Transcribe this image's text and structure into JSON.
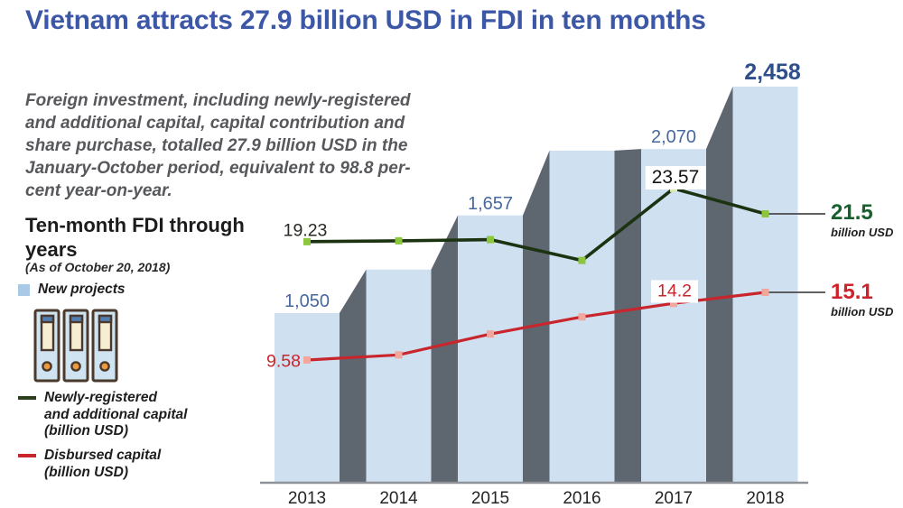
{
  "title": "Vietnam attracts 27.9 billion USD in FDI in ten months",
  "intro_lines": [
    "Foreign investment, including newly-registered",
    "and additional capital, capital contribution and",
    "share purchase, totalled 27.9 billion USD in the",
    "January-October period, equivalent to 98.8 per-",
    "cent year-on-year."
  ],
  "section": {
    "heading_line1": "Ten-month FDI through",
    "heading_line2": "years",
    "subheading": "(As of October 20, 2018)"
  },
  "legend": {
    "new_projects": "New projects",
    "newly_registered_lines": [
      "Newly-registered",
      "and additional capital",
      "(billion USD)"
    ],
    "disbursed_lines": [
      "Disbursed capital",
      "(billion USD)"
    ]
  },
  "colors": {
    "accent_blue": "#3c57a6",
    "bar_fill": "#cfe0f1",
    "bar_side": "#5e6670",
    "axis": "#8f9298",
    "green_line": "#1c3312",
    "green_marker": "#8cc63e",
    "green_marker_pale": "#dce8b4",
    "red_line": "#c9252c",
    "red_marker": "#f3a69c",
    "connector": "#4a4a4a",
    "end_green": "#17602e",
    "end_red": "#d02028"
  },
  "chart_data": {
    "type": "bar+line combo",
    "categories": [
      "2013",
      "2014",
      "2015",
      "2016",
      "2017",
      "2018"
    ],
    "legend_position": "left",
    "grid": false,
    "series": [
      {
        "name": "New projects",
        "type": "bar",
        "values": [
          1050,
          1320,
          1657,
          2060,
          2070,
          2458
        ],
        "value_labels": [
          "1,050",
          null,
          "1,657",
          null,
          "2,070",
          "2,458"
        ],
        "color": "#cfe0f1"
      },
      {
        "name": "Newly-registered and additional capital (billion USD)",
        "type": "line",
        "values": [
          19.23,
          19.3,
          19.4,
          17.7,
          23.57,
          21.5
        ],
        "point_labels": [
          "19.23",
          null,
          null,
          null,
          "23.57",
          null
        ],
        "end_label": {
          "value": "21.5",
          "unit": "billion USD"
        },
        "color": "#1c3312"
      },
      {
        "name": "Disbursed capital (billion USD)",
        "type": "line",
        "values": [
          9.58,
          10.0,
          11.7,
          13.1,
          14.2,
          15.1
        ],
        "point_labels": [
          "9.58",
          null,
          null,
          null,
          "14.2",
          null
        ],
        "end_label": {
          "value": "15.1",
          "unit": "billion USD"
        },
        "color": "#c9252c"
      }
    ]
  }
}
